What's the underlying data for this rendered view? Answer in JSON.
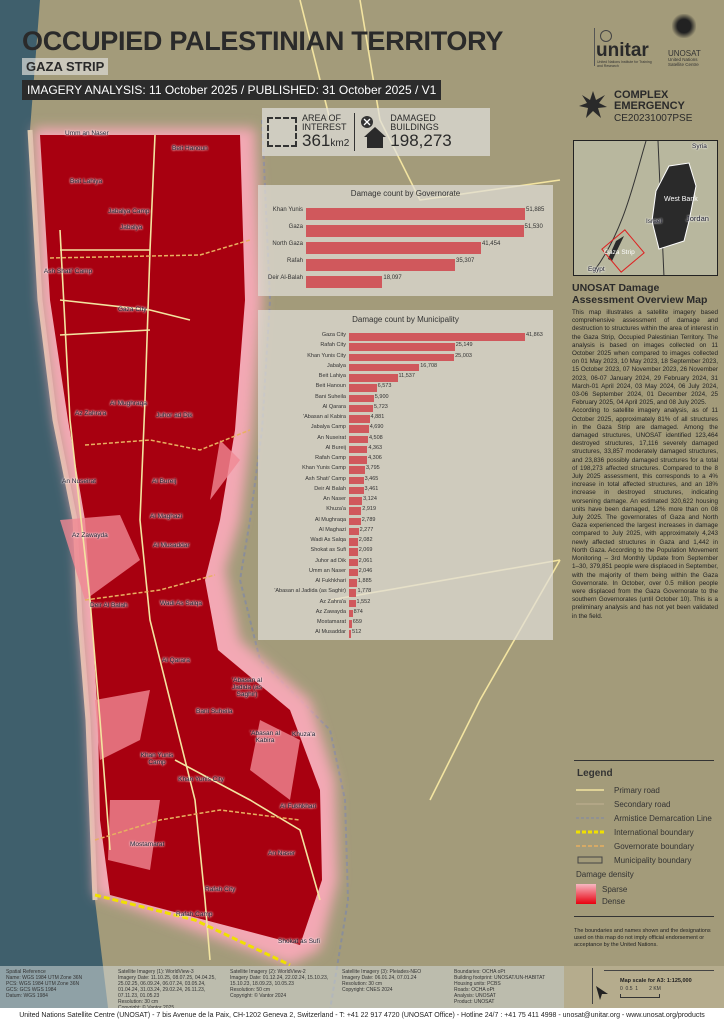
{
  "header": {
    "title": "OCCUPIED PALESTINIAN TERRITORY",
    "subtitle": "GAZA STRIP",
    "imagery_line": "IMAGERY ANALYSIS: 11 October 2025 / PUBLISHED: 31 October 2025 / V1"
  },
  "stats": {
    "aoi_label_1": "AREA OF",
    "aoi_label_2": "INTEREST",
    "aoi_value": "361",
    "aoi_unit": "km2",
    "dmg_label_1": "DAMAGED",
    "dmg_label_2": "BUILDINGS",
    "dmg_value": "198,273"
  },
  "logos": {
    "unitar": "unitar",
    "unitar_sub": "United Nations Institute for Training and Research",
    "unosat": "UNOSAT",
    "unosat_sub_1": "United Nations",
    "unosat_sub_2": "Satellite Centre"
  },
  "emergency": {
    "line1": "COMPLEX",
    "line2": "EMERGENCY",
    "code": "CE20231007PSE"
  },
  "inset": {
    "labels": [
      "Syria",
      "West Bank",
      "Israel",
      "Jordan",
      "Gaza Strip",
      "Egypt"
    ]
  },
  "description": {
    "heading": "UNOSAT Damage Assessment Overview Map",
    "p1": "This map illustrates a satellite imagery based comprehensive assessment of damage and destruction to structures within the area of interest in the Gaza Strip, Occupied Palestinian Territory. The analysis is based on images collected on 11 October 2025 when compared to images collected on 01 May 2023, 10 May 2023, 18 September 2023, 15 October 2023, 07 November 2023, 26 November 2023, 06-07 January 2024, 29 February 2024, 31 March-01 April 2024, 03 May 2024, 06 July 2024, 03-06 September 2024, 01 December 2024, 25 February 2025, 04 April 2025, and 08 July 2025.",
    "p2": "According to satellite imagery analysis, as of 11 October 2025, approximately 81% of all structures in the Gaza Strip are damaged. Among the damaged structures, UNOSAT identified 123,464 destroyed structures, 17,116 severely damaged structures, 33,857 moderately damaged structures, and 23,836 possibly damaged structures for a total of 198,273 affected structures. Compared to the 8 July 2025 assessment, this corresponds to a 4% increase in total affected structures, and an 18% increase in destroyed structures, indicating worsening damage. An estimated 320,622 housing units have been damaged, 12% more than on 08 July 2025. The governorates of Gaza and North Gaza experienced the largest increases in damage compared to July 2025, with approximately 4,243 newly affected structures in Gaza and 1,442 in North Gaza. According to the Population Movement Monitoring – 3rd Monthly Update from September 1–30, 379,851 people were displaced in September, with the majority of them being within the Gaza Governorate. In October, over 0.5 million people were displaced from the Gaza Governorate to the southern Governorates (until October 10). This is a preliminary analysis and has not yet been validated in the field."
  },
  "legend": {
    "title": "Legend",
    "items": [
      {
        "label": "Primary road",
        "color": "#f3e4a0"
      },
      {
        "label": "Secondary road",
        "color": "#b8a98a"
      },
      {
        "label": "Armistice Demarcation Line",
        "color": "#8a8e99"
      },
      {
        "label": "International boundary",
        "color": "#f0e000"
      },
      {
        "label": "Governorate boundary",
        "color": "#e8b060"
      },
      {
        "label": "Municipality boundary",
        "color": "#555555"
      }
    ],
    "density_title": "Damage density",
    "sparse": "Sparse",
    "dense": "Dense",
    "disclaimer": "The boundaries and names shown and the designations used on this map do not imply official endorsement or acceptance by the United Nations."
  },
  "scale": {
    "title": "Map scale for A3: 1:125,000",
    "ticks": "0  0.5  1        2 KM"
  },
  "metadata": [
    "Spatial Reference\nName: WGS 1984 UTM Zone 36N\nPCS: WGS 1984 UTM Zone 36N\nGCS: GCS WGS 1984\nDatum: WGS 1984",
    "Satellite Imagery (1): WorldView-3\nImagery Date: 11.10.25, 08.07.25, 04.04.25, 25.02.25, 06.09.24, 06.07.24, 03.05.24, 01.04.24, 31.03.24, 29.02.24, 26.11.23, 07.11.23, 01.05.23\nResolution: 30 cm\nCopyright: © Vantor 2025",
    "Satellite Imagery (2): WorldView-2\nImagery Date: 01.12.24, 22.02.24, 15.10.23, 15.10.23, 18.09.23, 10.05.23\nResolution: 50 cm\nCopyright: © Vantor 2024",
    "Satellite Imagery (3): Pleiades-NEO\nImagery Date: 06.01.24, 07.01.24\nResolution: 30 cm\nCopyright: CNES 2024",
    "Boundaries: OCHA oPt\nBuilding footprint: UNOSAT/UN-HABITAT\nHousing units: PCBS\nRoads: OCHA oPt\nAnalysis: UNOSAT\nProduct: UNOSAT"
  ],
  "footer": "United Nations Satellite Centre (UNOSAT) - 7 bis Avenue de la Paix, CH-1202 Geneva 2, Switzerland - T: +41 22 917 4720 (UNOSAT Office) - Hotline 24/7 : +41 75 411 4998 - unosat@unitar.org - www.unosat.org/products",
  "places": [
    "Umm an Naser",
    "Beit Hanoun",
    "Beit Lahiya",
    "Jabalya Camp",
    "Jabalya",
    "Ash Shati' Camp",
    "Gaza City",
    "Al Mughraqa",
    "Az Zahra'a",
    "Juhor ad Dik",
    "An Nuseirat",
    "Al Bureij",
    "Al Maghazi",
    "Az Zawayda",
    "Al Musaddar",
    "Deir Al Balah",
    "Wadi As Salqa",
    "Al Qarara",
    "'Abasan al Jadida (as Saghir)",
    "Bani Suheila",
    "'Abasan al Kabira",
    "Khuza'a",
    "Khan Yunis Camp",
    "Khan Yunis City",
    "Al Fukhkhari",
    "Mostamarat",
    "An Naser",
    "Rafah City",
    "Rafah Camp",
    "Shokat as Sufi"
  ],
  "colors": {
    "bar": "#d0585c",
    "damage_dense": "#a00010",
    "damage_sparse": "#f3a8b4"
  },
  "chart_data": [
    {
      "type": "bar",
      "orientation": "horizontal",
      "title": "Damage count by Governorate",
      "categories": [
        "Khan Yunis",
        "Gaza",
        "North Gaza",
        "Rafah",
        "Deir Al-Balah"
      ],
      "values": [
        51885,
        51530,
        41454,
        35307,
        18097
      ],
      "data_labels": [
        "51,885",
        "51,530",
        "41,454",
        "35,307",
        "18,097"
      ]
    },
    {
      "type": "bar",
      "orientation": "horizontal",
      "title": "Damage count by Municipality",
      "categories": [
        "Gaza City",
        "Rafah City",
        "Khan Yunis City",
        "Jabalya",
        "Beit Lahiya",
        "Beit Hanoun",
        "Bani Suheila",
        "Al Qarara",
        "'Abasan al Kabira",
        "Jabalya Camp",
        "An Nuseirat",
        "Al Bureij",
        "Rafah Camp",
        "Khan Yunis Camp",
        "Ash Shati' Camp",
        "Deir Al Balah",
        "An Naser",
        "Khuza'a",
        "Al Mughraqa",
        "Al Maghazi",
        "Wadi As Salqa",
        "Shokat as Sufi",
        "Juhor ad Dik",
        "Umm an Naser",
        "Al Fukhkhari",
        "'Abasan al Jadida (as Saghir)",
        "Az Zahra'a",
        "Az Zawayda",
        "Mostamarat",
        "Al Musaddar"
      ],
      "values": [
        41863,
        25149,
        25003,
        16708,
        11537,
        6573,
        5900,
        5723,
        4881,
        4690,
        4508,
        4363,
        4306,
        3795,
        3465,
        3461,
        3124,
        2919,
        2789,
        2277,
        2082,
        2069,
        2061,
        2046,
        1885,
        1778,
        1552,
        874,
        659,
        512
      ]
    }
  ]
}
